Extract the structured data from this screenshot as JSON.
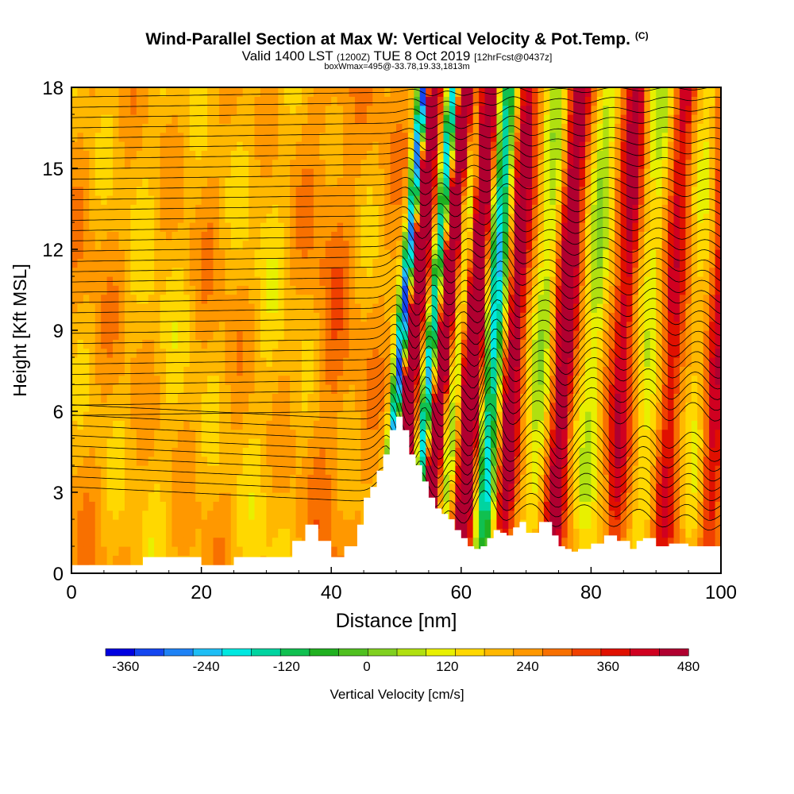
{
  "header": {
    "title": "Wind-Parallel Section at Max W: Vertical Velocity & Pot.Temp.",
    "copyright": "(C)",
    "subtitle_main": "Valid 1400 LST",
    "subtitle_zulu": "(1200Z)",
    "subtitle_date": "TUE 8 Oct 2019",
    "subtitle_fcst": "[12hrFcst@0437z]",
    "info_line": "boxWmax=495@-33.78,19.33,1813m"
  },
  "chart_data": {
    "type": "heatmap",
    "title": "Wind-Parallel Section at Max W: Vertical Velocity & Pot.Temp.",
    "xlabel": "Distance [nm]",
    "ylabel": "Height [Kft MSL]",
    "xlim": [
      0,
      100
    ],
    "ylim": [
      0,
      18
    ],
    "xticks": [
      "0",
      "20",
      "40",
      "60",
      "80",
      "100"
    ],
    "yticks": [
      "0",
      "3",
      "6",
      "9",
      "12",
      "15",
      "18"
    ],
    "colorbar": {
      "label": "Vertical Velocity [cm/s]",
      "min": -390,
      "max": 480,
      "step": 30,
      "tick_labels": [
        "-360",
        "-240",
        "-120",
        "0",
        "120",
        "240",
        "360",
        "480"
      ],
      "colors": [
        "#0000e0",
        "#1446f0",
        "#1e82f5",
        "#1ebef5",
        "#00e8e0",
        "#00d4a0",
        "#10c050",
        "#20b020",
        "#50c020",
        "#80d020",
        "#b0e010",
        "#e8f000",
        "#ffd800",
        "#ffb800",
        "#ff9800",
        "#f87000",
        "#f04000",
        "#e01000",
        "#d00020",
        "#b00030"
      ]
    },
    "terrain": {
      "description": "Surface elevation along section",
      "x_nm": [
        0,
        10,
        11,
        18,
        20,
        24,
        25,
        33,
        34,
        36,
        38,
        40,
        42,
        44,
        45,
        46,
        47,
        48,
        49,
        50,
        51,
        52,
        53,
        54,
        55,
        56,
        57,
        58,
        59,
        60,
        61,
        62,
        63,
        64,
        65,
        66,
        67,
        68,
        69,
        70,
        72,
        74,
        75,
        76,
        77,
        78,
        80,
        82,
        84,
        86,
        87,
        88,
        90,
        92,
        95,
        100
      ],
      "height_kft": [
        0.3,
        0.3,
        0.6,
        0.6,
        0.3,
        0.3,
        0.6,
        0.6,
        1.2,
        1.8,
        1.2,
        0.6,
        1.0,
        1.8,
        2.8,
        3.2,
        3.8,
        4.4,
        5.3,
        5.8,
        5.3,
        4.4,
        4.0,
        3.4,
        2.8,
        2.4,
        2.2,
        2.0,
        1.6,
        1.3,
        1.0,
        0.9,
        1.0,
        1.3,
        1.6,
        1.5,
        1.4,
        1.7,
        1.9,
        1.5,
        1.9,
        1.4,
        1.0,
        0.9,
        0.8,
        0.9,
        1.1,
        1.4,
        1.2,
        0.9,
        1.2,
        1.3,
        1.0,
        1.1,
        1.0,
        1.0
      ]
    },
    "velocity_bands": [
      {
        "center_nm": 50.0,
        "value": -360
      },
      {
        "center_nm": 51.5,
        "value": 450
      },
      {
        "center_nm": 53.0,
        "value": 60
      },
      {
        "center_nm": 54.5,
        "value": -300
      },
      {
        "center_nm": 56.5,
        "value": 400
      },
      {
        "center_nm": 59.0,
        "value": -120
      },
      {
        "center_nm": 61.5,
        "value": 280
      },
      {
        "center_nm": 64.5,
        "value": -280
      },
      {
        "center_nm": 67.5,
        "value": 180
      },
      {
        "center_nm": 72.0,
        "value": -90
      },
      {
        "center_nm": 75.5,
        "value": 200
      },
      {
        "center_nm": 80.0,
        "value": -100
      },
      {
        "center_nm": 84.5,
        "value": 160
      },
      {
        "center_nm": 88.5,
        "value": -90
      },
      {
        "center_nm": 92.0,
        "value": 140
      },
      {
        "center_nm": 96.0,
        "value": -60
      },
      {
        "center_nm": 99.0,
        "value": 150
      }
    ],
    "theta_contours": {
      "count": 42,
      "bottom_kft": 2.6,
      "top_kft": 18.2
    }
  }
}
